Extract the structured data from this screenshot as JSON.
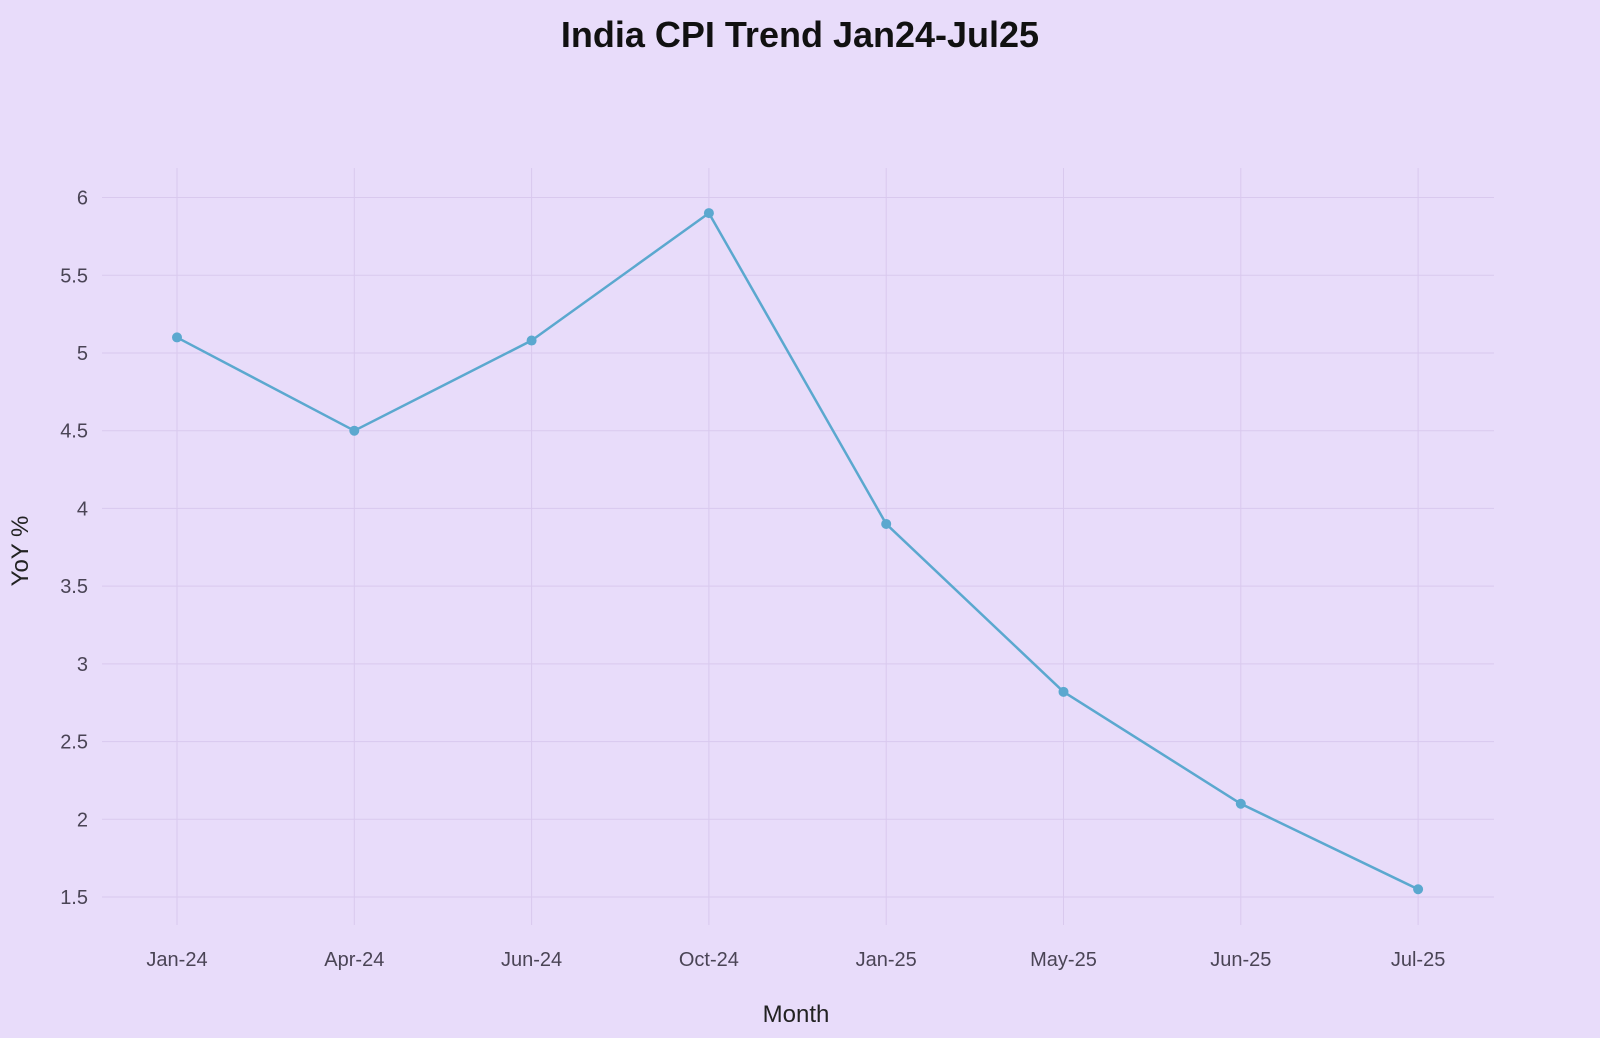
{
  "chart_data": {
    "type": "line",
    "title": "India CPI Trend Jan24-Jul25",
    "xlabel": "Month",
    "ylabel": "YoY %",
    "categories": [
      "Jan-24",
      "Apr-24",
      "Jun-24",
      "Oct-24",
      "Jan-25",
      "May-25",
      "Jun-25",
      "Jul-25"
    ],
    "series": [
      {
        "values": [
          5.1,
          4.5,
          5.08,
          5.9,
          3.9,
          2.82,
          2.1,
          1.55
        ]
      }
    ],
    "ylim": [
      1.32,
      6.19
    ],
    "yticks": [
      "1.5",
      "2",
      "2.5",
      "3",
      "3.5",
      "4",
      "4.5",
      "5",
      "5.5",
      "6"
    ],
    "grid": true,
    "legend": "none",
    "colors": {
      "line": "#5ba8cf",
      "background": "#e8dcfa",
      "grid": "#d9c9ee"
    }
  }
}
